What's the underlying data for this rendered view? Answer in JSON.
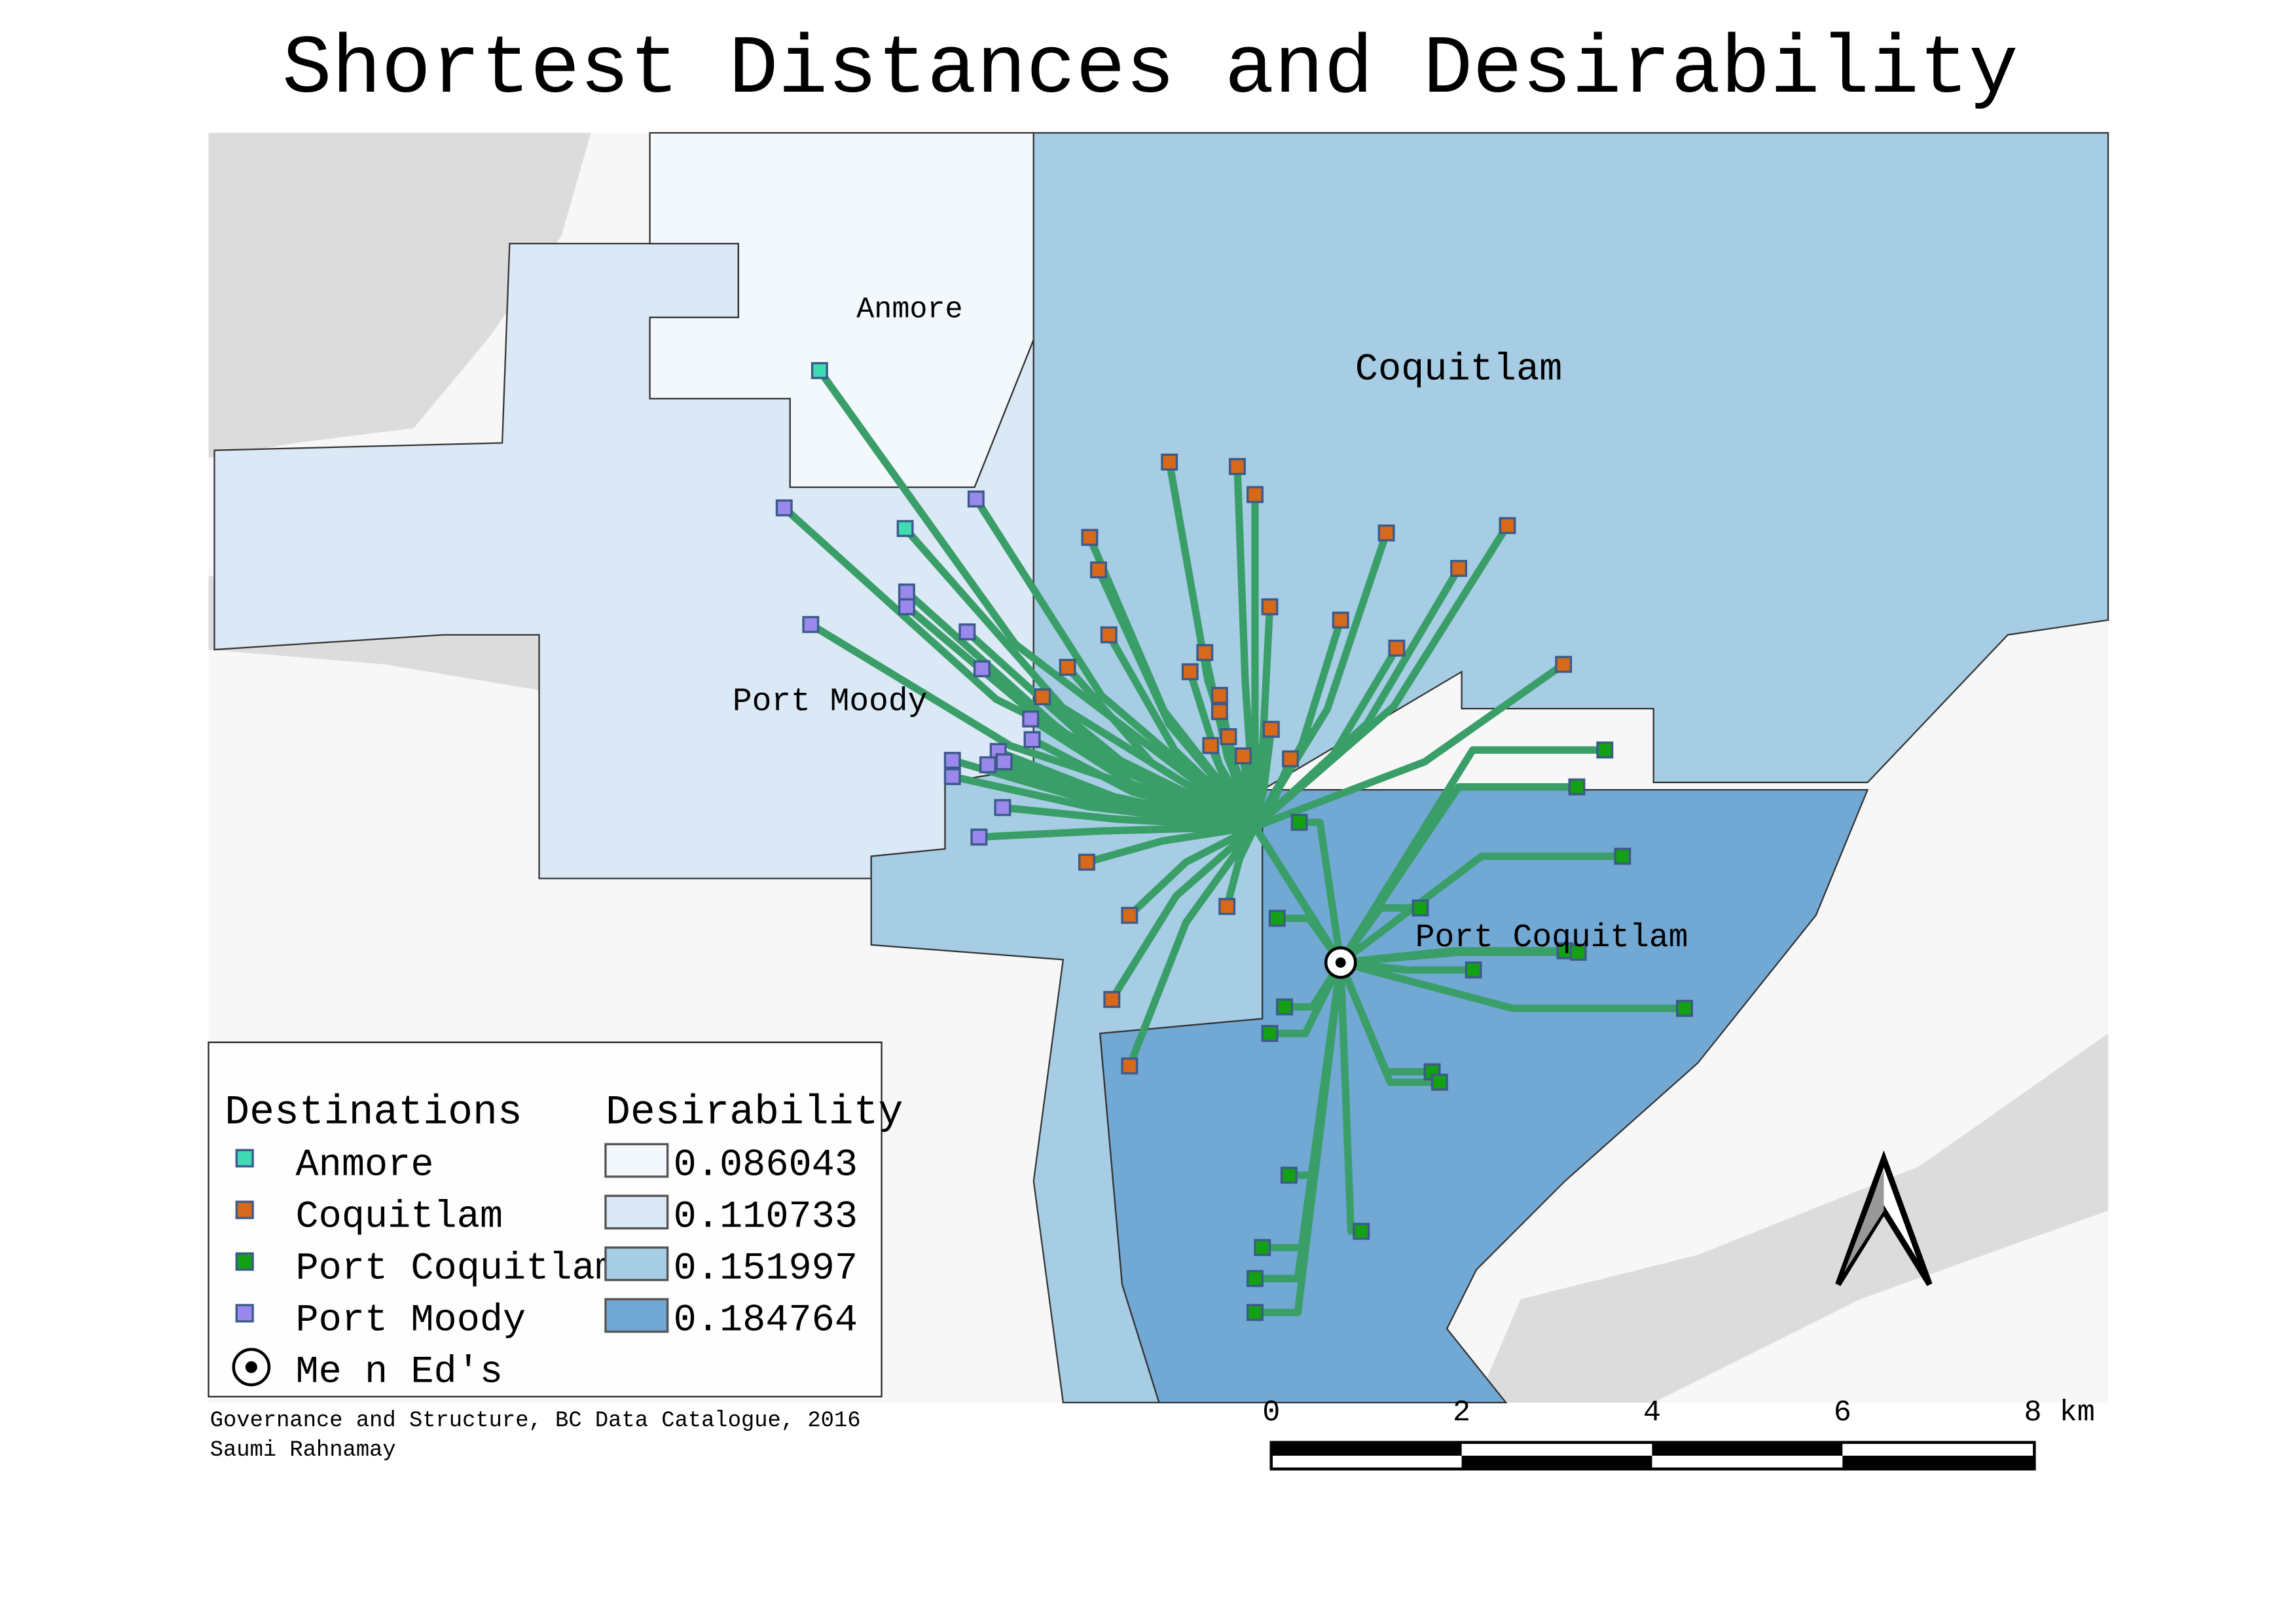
{
  "title": "Shortest Distances and Desirability",
  "map_labels": {
    "anmore": "Anmore",
    "coquitlam": "Coquitlam",
    "port_moody": "Port Moody",
    "port_coquitlam": "Port Coquitlam"
  },
  "legend": {
    "destinations_title": "Destinations",
    "destinations": [
      {
        "label": "Anmore",
        "color": "#3fdcb4"
      },
      {
        "label": "Coquitlam",
        "color": "#d8681a"
      },
      {
        "label": "Port Coquitlam",
        "color": "#14a014"
      },
      {
        "label": "Port Moody",
        "color": "#9a88ec"
      }
    ],
    "origin_label": "Me n Ed's",
    "origin_icon": "circle-dot-icon",
    "desirability_title": "Desirability",
    "desirability": [
      {
        "label": "0.086043",
        "color": "#f3f8fd"
      },
      {
        "label": "0.110733",
        "color": "#dbe8f5"
      },
      {
        "label": "0.151997",
        "color": "#a6cde3"
      },
      {
        "label": "0.184764",
        "color": "#72a8d4"
      }
    ]
  },
  "route_color": "#3a9e68",
  "credits": {
    "source": "Governance and Structure, BC Data Catalogue, 2016",
    "author": "Saumi Rahnamay"
  },
  "scale_bar": {
    "ticks": [
      "0",
      "2",
      "4",
      "6",
      "8"
    ],
    "unit": "km"
  },
  "north_arrow": "north-arrow-icon"
}
